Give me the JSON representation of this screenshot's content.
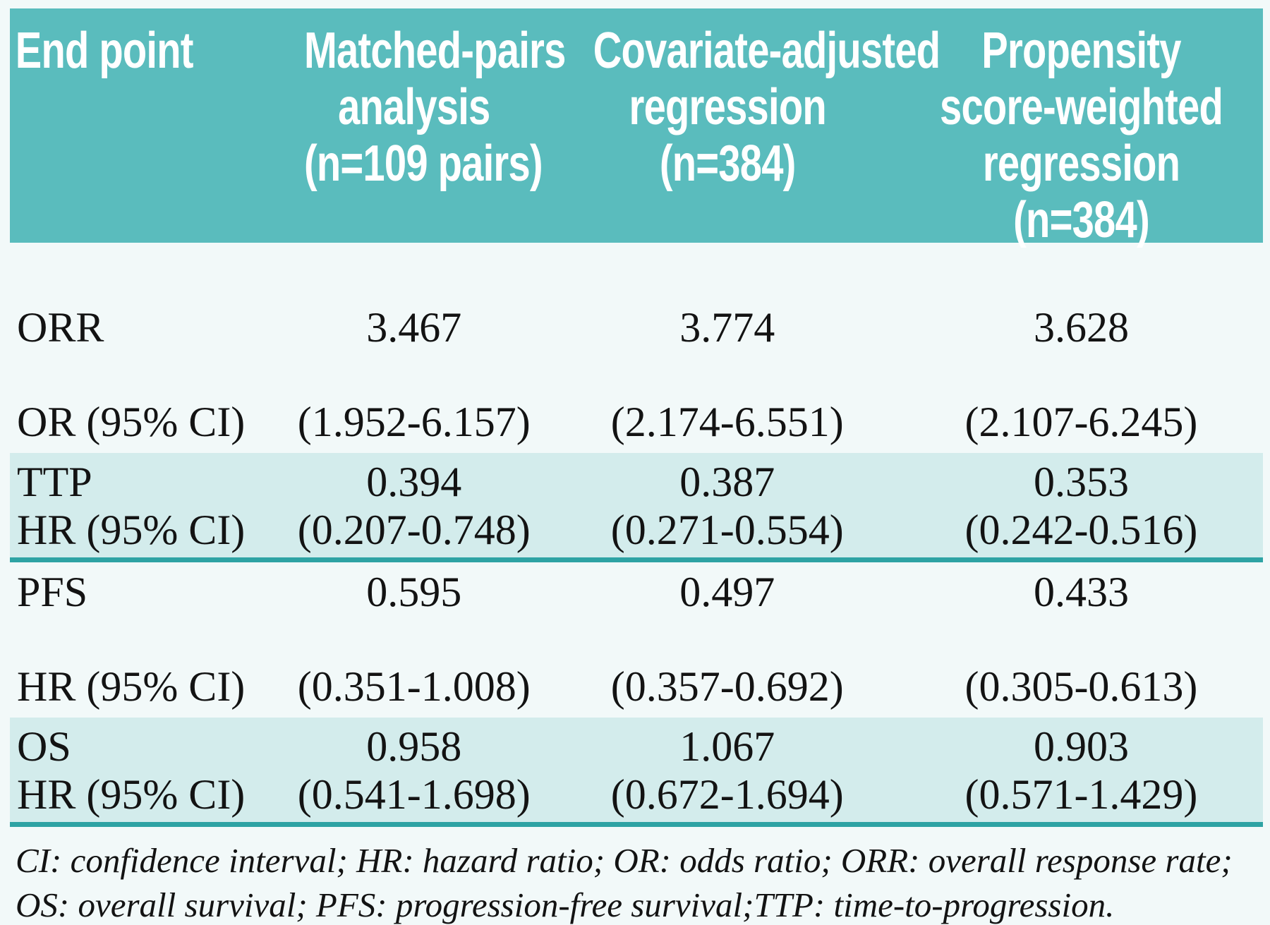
{
  "colors": {
    "header_bg": "#5abcbd",
    "row_highlight_bg": "#d3ecec",
    "divider": "#2ea3a4",
    "page_bg": "#f2f9f9",
    "header_text": "#ffffff",
    "body_text": "#131313"
  },
  "table": {
    "columns": [
      {
        "id": "endpoint",
        "lines": [
          "End point"
        ]
      },
      {
        "id": "matched-pairs",
        "lines": [
          "Matched-pairs",
          "analysis",
          "(n=109 pairs)"
        ]
      },
      {
        "id": "covariate-adjusted",
        "lines": [
          "Covariate-adjusted",
          "regression",
          "(n=384)"
        ]
      },
      {
        "id": "propensity",
        "lines": [
          "Propensity",
          "score-weighted",
          "regression",
          "(n=384)"
        ]
      }
    ],
    "rows": [
      {
        "endpoint": "ORR",
        "measure": "OR (95% CI)",
        "highlighted": false,
        "values": [
          {
            "estimate": "3.467",
            "ci": "(1.952-6.157)"
          },
          {
            "estimate": "3.774",
            "ci": "(2.174-6.551)"
          },
          {
            "estimate": "3.628",
            "ci": "(2.107-6.245)"
          }
        ]
      },
      {
        "endpoint": "TTP",
        "measure": "HR (95% CI)",
        "highlighted": true,
        "values": [
          {
            "estimate": "0.394",
            "ci": "(0.207-0.748)"
          },
          {
            "estimate": "0.387",
            "ci": "(0.271-0.554)"
          },
          {
            "estimate": "0.353",
            "ci": "(0.242-0.516)"
          }
        ]
      },
      {
        "endpoint": "PFS",
        "measure": "HR (95% CI)",
        "highlighted": false,
        "values": [
          {
            "estimate": "0.595",
            "ci": "(0.351-1.008)"
          },
          {
            "estimate": "0.497",
            "ci": "(0.357-0.692)"
          },
          {
            "estimate": "0.433",
            "ci": "(0.305-0.613)"
          }
        ]
      },
      {
        "endpoint": "OS",
        "measure": "HR (95% CI)",
        "highlighted": true,
        "values": [
          {
            "estimate": "0.958",
            "ci": "(0.541-1.698)"
          },
          {
            "estimate": "1.067",
            "ci": "(0.672-1.694)"
          },
          {
            "estimate": "0.903",
            "ci": "(0.571-1.429)"
          }
        ]
      }
    ],
    "footnote": "CI: confidence interval; HR: hazard ratio; OR: odds ratio; ORR: overall response rate; OS: overall survival; PFS: progression-free survival;TTP: time-to-progression."
  }
}
